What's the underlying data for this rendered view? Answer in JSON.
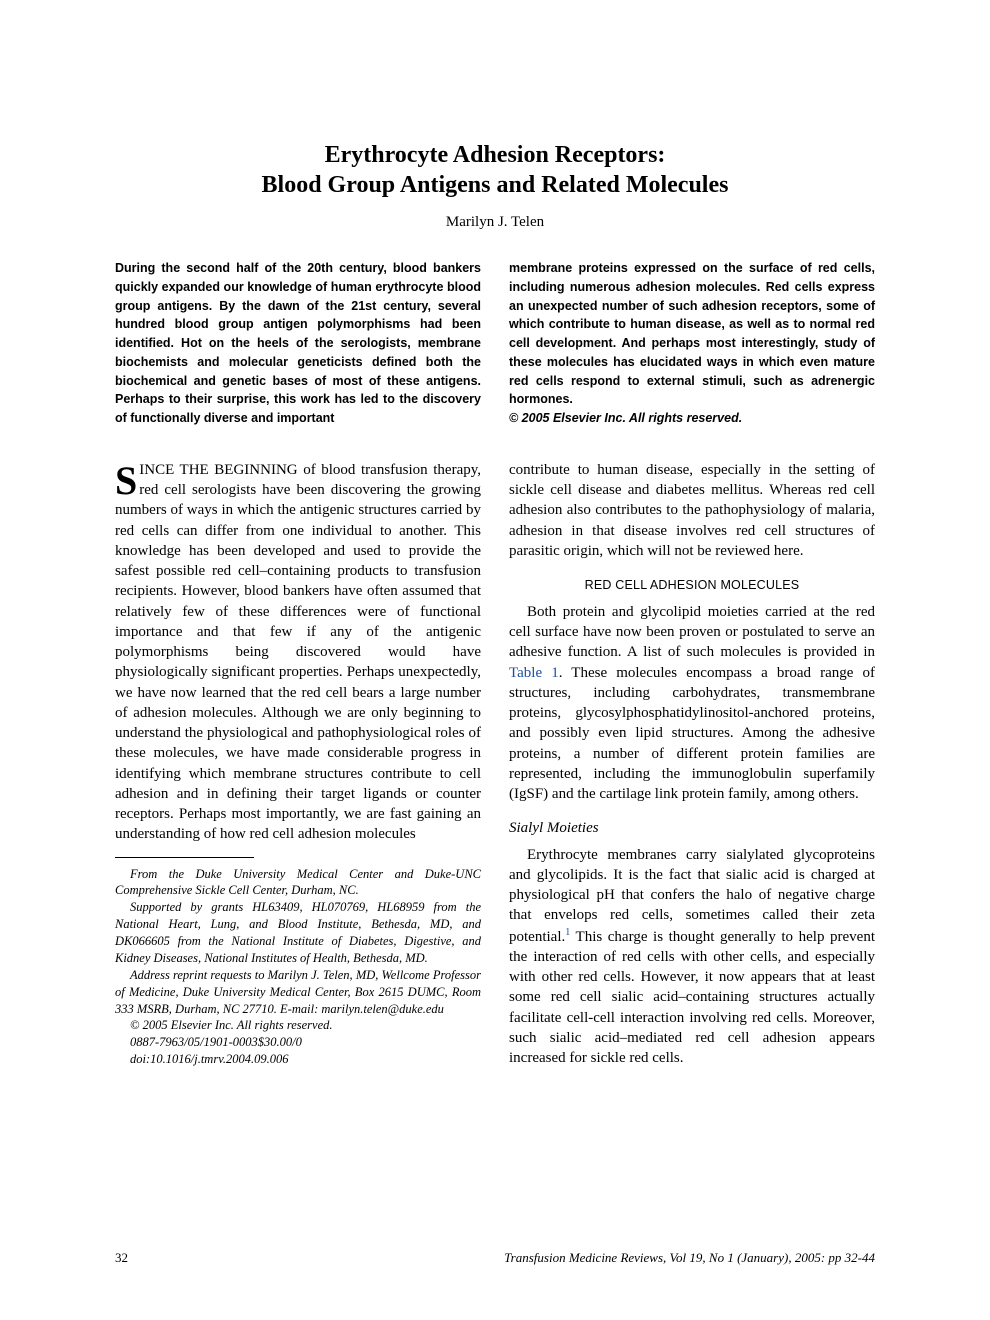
{
  "title_line1": "Erythrocyte Adhesion Receptors:",
  "title_line2": "Blood Group Antigens and Related Molecules",
  "author": "Marilyn J. Telen",
  "abstract": {
    "left": "During the second half of the 20th century, blood bankers quickly expanded our knowledge of human erythrocyte blood group antigens. By the dawn of the 21st century, several hundred blood group antigen polymorphisms had been identified. Hot on the heels of the serologists, membrane biochemists and molecular geneticists defined both the biochemical and genetic bases of most of these antigens. Perhaps to their surprise, this work has led to the discovery of functionally diverse and important",
    "right": "membrane proteins expressed on the surface of red cells, including numerous adhesion molecules. Red cells express an unexpected number of such adhesion receptors, some of which contribute to human disease, as well as to normal red cell development. And perhaps most interestingly, study of these molecules has elucidated ways in which even mature red cells respond to external stimuli, such as adrenergic hormones.",
    "copyright": "© 2005 Elsevier Inc. All rights reserved."
  },
  "body": {
    "left_p1_dropcap": "S",
    "left_p1_caps": "INCE THE BEGINNING",
    "left_p1_rest": " of blood transfusion therapy, red cell serologists have been discovering the growing numbers of ways in which the antigenic structures carried by red cells can differ from one individual to another. This knowledge has been developed and used to provide the safest possible red cell–containing products to transfusion recipients. However, blood bankers have often assumed that relatively few of these differences were of functional importance and that few if any of the antigenic polymorphisms being discovered would have physiologically significant properties. Perhaps unexpectedly, we have now learned that the red cell bears a large number of adhesion molecules. Although we are only beginning to understand the physiological and pathophysiological roles of these molecules, we have made considerable progress in identifying which membrane structures contribute to cell adhesion and in defining their target ligands or counter receptors. Perhaps most importantly, we are fast gaining an understanding of how red cell adhesion molecules",
    "right_p1": "contribute to human disease, especially in the setting of sickle cell disease and diabetes mellitus. Whereas red cell adhesion also contributes to the pathophysiology of malaria, adhesion in that disease involves red cell structures of parasitic origin, which will not be reviewed here.",
    "section_head": "RED CELL ADHESION MOLECULES",
    "right_p2a": "Both protein and glycolipid moieties carried at the red cell surface have now been proven or postulated to serve an adhesive function. A list of such molecules is provided in ",
    "table_ref": "Table 1",
    "right_p2b": ". These molecules encompass a broad range of structures, including carbohydrates, transmembrane proteins, glycosylphosphatidylinositol-anchored proteins, and possibly even lipid structures. Among the adhesive proteins, a number of different protein families are represented, including the immunoglobulin superfamily (IgSF) and the cartilage link protein family, among others.",
    "subhead": "Sialyl Moieties",
    "right_p3a": "Erythrocyte membranes carry sialylated glycoproteins and glycolipids. It is the fact that sialic acid is charged at physiological pH that confers the halo of negative charge that envelops red cells, sometimes called their zeta potential.",
    "cite1": "1",
    "right_p3b": " This charge is thought generally to help prevent the interaction of red cells with other cells, and especially with other red cells. However, it now appears that at least some red cell sialic acid–containing structures actually facilitate cell-cell interaction involving red cells. Moreover, such sialic acid–mediated red cell adhesion appears increased for sickle red cells."
  },
  "footnotes": {
    "f1": "From the Duke University Medical Center and Duke-UNC Comprehensive Sickle Cell Center, Durham, NC.",
    "f2": "Supported by grants HL63409, HL070769, HL68959 from the National Heart, Lung, and Blood Institute, Bethesda, MD, and DK066605 from the National Institute of Diabetes, Digestive, and Kidney Diseases, National Institutes of Health, Bethesda, MD.",
    "f3": "Address reprint requests to Marilyn J. Telen, MD, Wellcome Professor of Medicine, Duke University Medical Center, Box 2615 DUMC, Room 333 MSRB, Durham, NC 27710. E-mail: marilyn.telen@duke.edu",
    "f4": "© 2005 Elsevier Inc. All rights reserved.",
    "f5": "0887-7963/05/1901-0003$30.00/0",
    "f6": "doi:10.1016/j.tmrv.2004.09.006"
  },
  "footer": {
    "page": "32",
    "citation": "Transfusion Medicine Reviews, Vol 19, No 1 (January), 2005: pp 32-44"
  }
}
